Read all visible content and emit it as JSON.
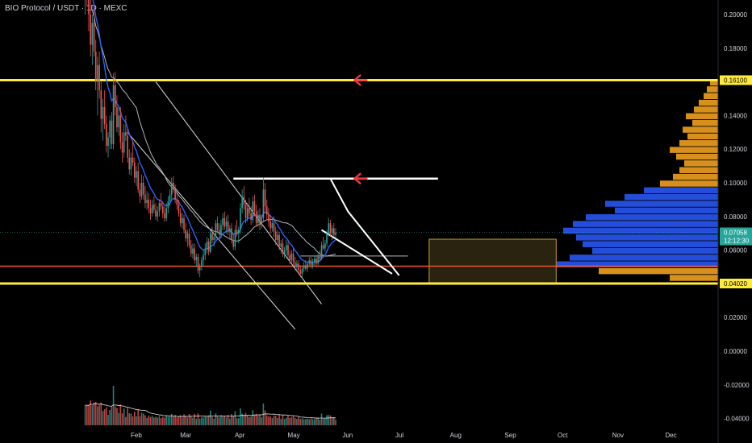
{
  "header": {
    "symbol_title": "BIO Protocol / USDT · 1D · MEXC"
  },
  "colors": {
    "background": "#000000",
    "up": "#26a69a",
    "down": "#ef5350",
    "level_yellow": "#ffeb3b",
    "level_orange": "#ff5722",
    "arrow_red": "#f23645",
    "ema_blue": "#2962ff",
    "sma_gray": "#b2b5be",
    "profile_orange": "#f0a020",
    "profile_blue": "#2a5cff",
    "box_fill": "#3a3216",
    "box_stroke": "#c9a227"
  },
  "chart_data": {
    "type": "candlestick",
    "x_axis": {
      "ticks": [
        "Feb",
        "Mar",
        "Apr",
        "May",
        "Jun",
        "Jul",
        "Aug",
        "Sep",
        "Oct",
        "Nov",
        "Dec"
      ]
    },
    "y_axis": {
      "scale": "linear",
      "range": [
        -0.045,
        0.21
      ],
      "ticks": [
        "0.20000",
        "0.18000",
        "0.16000",
        "0.14000",
        "0.12000",
        "0.10000",
        "0.08000",
        "0.06000",
        "0.04000",
        "0.02000",
        "0.00000",
        "-0.02000",
        "-0.04000"
      ]
    },
    "price_label": {
      "value": "0.07058",
      "countdown": "12:12:30"
    },
    "levels": [
      {
        "name": "resistance-high",
        "value": 0.161,
        "label": "0.16100",
        "color": "#ffeb3b"
      },
      {
        "name": "support-low",
        "value": 0.0402,
        "label": "0.04020",
        "color": "#ffeb3b"
      },
      {
        "name": "orange-line",
        "value": 0.0505,
        "color": "#ff5722"
      },
      {
        "name": "current-price",
        "value": 0.07058,
        "color": "#26a69a"
      }
    ],
    "annotations": {
      "white_top_line": {
        "x_from": "2025-03-28",
        "x_to": "2025-07-22",
        "y": 0.1025
      },
      "white_mid_line": {
        "x_from": "2025-05-05",
        "x_to": "2025-07-05",
        "y": 0.0565
      },
      "triangle": [
        [
          "2025-05-22",
          0.1025
        ],
        [
          "2025-06-01",
          0.083
        ],
        [
          "2025-06-30",
          0.045
        ]
      ],
      "wedge_line": [
        [
          "2025-05-17",
          0.072
        ],
        [
          "2025-06-26",
          0.046
        ]
      ],
      "channel_upper": [
        [
          "2025-02-12",
          0.16
        ],
        [
          "2025-05-17",
          0.028
        ]
      ],
      "channel_lower": [
        [
          "2025-01-27",
          0.13
        ],
        [
          "2025-05-02",
          0.013
        ]
      ],
      "arrows": [
        {
          "x": "2025-06-07",
          "y": 0.161
        },
        {
          "x": "2025-06-07",
          "y": 0.1025
        }
      ],
      "box": {
        "x_from": "2025-07-17",
        "x_to": "2025-09-27",
        "y_from": 0.0405,
        "y_to": 0.0665
      }
    },
    "candles": {
      "start": "2025-01-03",
      "ohlc": [
        [
          0.215,
          0.24,
          0.2,
          0.225
        ],
        [
          0.225,
          0.235,
          0.205,
          0.212
        ],
        [
          0.212,
          0.222,
          0.19,
          0.2
        ],
        [
          0.2,
          0.21,
          0.175,
          0.182
        ],
        [
          0.182,
          0.2,
          0.17,
          0.195
        ],
        [
          0.195,
          0.205,
          0.175,
          0.178
        ],
        [
          0.178,
          0.185,
          0.155,
          0.16
        ],
        [
          0.16,
          0.175,
          0.14,
          0.17
        ],
        [
          0.17,
          0.178,
          0.15,
          0.155
        ],
        [
          0.155,
          0.16,
          0.13,
          0.138
        ],
        [
          0.138,
          0.15,
          0.125,
          0.145
        ],
        [
          0.145,
          0.155,
          0.132,
          0.135
        ],
        [
          0.135,
          0.14,
          0.118,
          0.122
        ],
        [
          0.122,
          0.13,
          0.115,
          0.127
        ],
        [
          0.127,
          0.14,
          0.12,
          0.137
        ],
        [
          0.137,
          0.142,
          0.12,
          0.123
        ],
        [
          0.123,
          0.165,
          0.12,
          0.158
        ],
        [
          0.158,
          0.166,
          0.14,
          0.145
        ],
        [
          0.145,
          0.152,
          0.13,
          0.133
        ],
        [
          0.133,
          0.145,
          0.128,
          0.14
        ],
        [
          0.14,
          0.145,
          0.12,
          0.124
        ],
        [
          0.124,
          0.13,
          0.112,
          0.118
        ],
        [
          0.118,
          0.135,
          0.115,
          0.13
        ],
        [
          0.13,
          0.14,
          0.125,
          0.128
        ],
        [
          0.128,
          0.132,
          0.112,
          0.115
        ],
        [
          0.115,
          0.12,
          0.105,
          0.108
        ],
        [
          0.108,
          0.118,
          0.104,
          0.115
        ],
        [
          0.115,
          0.125,
          0.11,
          0.112
        ],
        [
          0.112,
          0.115,
          0.1,
          0.103
        ],
        [
          0.103,
          0.11,
          0.098,
          0.107
        ],
        [
          0.107,
          0.112,
          0.094,
          0.096
        ],
        [
          0.096,
          0.1,
          0.088,
          0.092
        ],
        [
          0.092,
          0.105,
          0.09,
          0.1
        ],
        [
          0.1,
          0.104,
          0.09,
          0.093
        ],
        [
          0.093,
          0.098,
          0.085,
          0.088
        ],
        [
          0.088,
          0.095,
          0.084,
          0.09
        ],
        [
          0.09,
          0.094,
          0.082,
          0.085
        ],
        [
          0.085,
          0.09,
          0.078,
          0.082
        ],
        [
          0.082,
          0.09,
          0.08,
          0.087
        ],
        [
          0.087,
          0.092,
          0.082,
          0.084
        ],
        [
          0.084,
          0.088,
          0.078,
          0.08
        ],
        [
          0.08,
          0.086,
          0.077,
          0.083
        ],
        [
          0.083,
          0.09,
          0.08,
          0.088
        ],
        [
          0.088,
          0.094,
          0.084,
          0.086
        ],
        [
          0.086,
          0.089,
          0.079,
          0.082
        ],
        [
          0.082,
          0.086,
          0.077,
          0.079
        ],
        [
          0.079,
          0.088,
          0.077,
          0.085
        ],
        [
          0.085,
          0.092,
          0.082,
          0.089
        ],
        [
          0.089,
          0.096,
          0.086,
          0.093
        ],
        [
          0.093,
          0.103,
          0.09,
          0.1
        ],
        [
          0.1,
          0.104,
          0.094,
          0.096
        ],
        [
          0.096,
          0.099,
          0.088,
          0.09
        ],
        [
          0.09,
          0.094,
          0.084,
          0.087
        ],
        [
          0.087,
          0.09,
          0.08,
          0.082
        ],
        [
          0.082,
          0.085,
          0.074,
          0.076
        ],
        [
          0.076,
          0.082,
          0.073,
          0.079
        ],
        [
          0.079,
          0.081,
          0.07,
          0.072
        ],
        [
          0.072,
          0.076,
          0.065,
          0.067
        ],
        [
          0.067,
          0.072,
          0.062,
          0.07
        ],
        [
          0.07,
          0.073,
          0.061,
          0.063
        ],
        [
          0.063,
          0.066,
          0.056,
          0.058
        ],
        [
          0.058,
          0.064,
          0.055,
          0.061
        ],
        [
          0.061,
          0.064,
          0.052,
          0.054
        ],
        [
          0.054,
          0.058,
          0.05,
          0.056
        ],
        [
          0.056,
          0.058,
          0.046,
          0.048
        ],
        [
          0.048,
          0.052,
          0.044,
          0.05
        ],
        [
          0.05,
          0.056,
          0.048,
          0.054
        ],
        [
          0.054,
          0.06,
          0.051,
          0.057
        ],
        [
          0.057,
          0.064,
          0.054,
          0.061
        ],
        [
          0.061,
          0.068,
          0.058,
          0.065
        ],
        [
          0.065,
          0.067,
          0.057,
          0.059
        ],
        [
          0.059,
          0.072,
          0.058,
          0.07
        ],
        [
          0.07,
          0.074,
          0.064,
          0.066
        ],
        [
          0.066,
          0.07,
          0.062,
          0.068
        ],
        [
          0.068,
          0.078,
          0.066,
          0.076
        ],
        [
          0.076,
          0.08,
          0.07,
          0.072
        ],
        [
          0.072,
          0.076,
          0.066,
          0.069
        ],
        [
          0.069,
          0.078,
          0.067,
          0.075
        ],
        [
          0.075,
          0.082,
          0.072,
          0.079
        ],
        [
          0.079,
          0.083,
          0.072,
          0.074
        ],
        [
          0.074,
          0.08,
          0.07,
          0.077
        ],
        [
          0.077,
          0.081,
          0.069,
          0.071
        ],
        [
          0.071,
          0.075,
          0.066,
          0.073
        ],
        [
          0.073,
          0.076,
          0.064,
          0.066
        ],
        [
          0.066,
          0.07,
          0.06,
          0.062
        ],
        [
          0.062,
          0.075,
          0.06,
          0.072
        ],
        [
          0.072,
          0.078,
          0.068,
          0.07
        ],
        [
          0.07,
          0.074,
          0.064,
          0.072
        ],
        [
          0.072,
          0.088,
          0.07,
          0.085
        ],
        [
          0.085,
          0.096,
          0.082,
          0.092
        ],
        [
          0.092,
          0.098,
          0.084,
          0.087
        ],
        [
          0.087,
          0.09,
          0.076,
          0.079
        ],
        [
          0.079,
          0.088,
          0.077,
          0.085
        ],
        [
          0.085,
          0.091,
          0.08,
          0.082
        ],
        [
          0.082,
          0.086,
          0.075,
          0.078
        ],
        [
          0.078,
          0.092,
          0.076,
          0.089
        ],
        [
          0.089,
          0.093,
          0.08,
          0.083
        ],
        [
          0.083,
          0.087,
          0.074,
          0.076
        ],
        [
          0.076,
          0.084,
          0.074,
          0.081
        ],
        [
          0.081,
          0.085,
          0.072,
          0.075
        ],
        [
          0.075,
          0.081,
          0.073,
          0.079
        ],
        [
          0.079,
          0.103,
          0.077,
          0.096
        ],
        [
          0.096,
          0.1,
          0.082,
          0.086
        ],
        [
          0.086,
          0.09,
          0.078,
          0.081
        ],
        [
          0.081,
          0.085,
          0.074,
          0.077
        ],
        [
          0.077,
          0.081,
          0.07,
          0.073
        ],
        [
          0.073,
          0.079,
          0.071,
          0.076
        ],
        [
          0.076,
          0.08,
          0.068,
          0.071
        ],
        [
          0.071,
          0.074,
          0.063,
          0.066
        ],
        [
          0.066,
          0.072,
          0.064,
          0.069
        ],
        [
          0.069,
          0.071,
          0.06,
          0.062
        ],
        [
          0.062,
          0.066,
          0.058,
          0.064
        ],
        [
          0.064,
          0.067,
          0.056,
          0.058
        ],
        [
          0.058,
          0.062,
          0.055,
          0.06
        ],
        [
          0.06,
          0.066,
          0.057,
          0.063
        ],
        [
          0.063,
          0.065,
          0.055,
          0.057
        ],
        [
          0.057,
          0.06,
          0.052,
          0.054
        ],
        [
          0.054,
          0.06,
          0.052,
          0.058
        ],
        [
          0.058,
          0.061,
          0.051,
          0.053
        ],
        [
          0.053,
          0.056,
          0.048,
          0.05
        ],
        [
          0.05,
          0.054,
          0.047,
          0.052
        ],
        [
          0.052,
          0.054,
          0.046,
          0.048
        ],
        [
          0.048,
          0.051,
          0.044,
          0.046
        ],
        [
          0.046,
          0.05,
          0.043,
          0.049
        ],
        [
          0.049,
          0.053,
          0.047,
          0.051
        ],
        [
          0.051,
          0.054,
          0.048,
          0.049
        ],
        [
          0.049,
          0.053,
          0.047,
          0.052
        ],
        [
          0.052,
          0.056,
          0.05,
          0.054
        ],
        [
          0.054,
          0.056,
          0.049,
          0.051
        ],
        [
          0.051,
          0.055,
          0.049,
          0.053
        ],
        [
          0.053,
          0.057,
          0.051,
          0.055
        ],
        [
          0.055,
          0.057,
          0.05,
          0.052
        ],
        [
          0.052,
          0.058,
          0.051,
          0.056
        ],
        [
          0.056,
          0.06,
          0.053,
          0.055
        ],
        [
          0.055,
          0.065,
          0.054,
          0.063
        ],
        [
          0.063,
          0.068,
          0.06,
          0.061
        ],
        [
          0.061,
          0.066,
          0.059,
          0.064
        ],
        [
          0.064,
          0.072,
          0.062,
          0.07
        ],
        [
          0.07,
          0.079,
          0.068,
          0.076
        ],
        [
          0.076,
          0.078,
          0.068,
          0.07
        ],
        [
          0.07,
          0.075,
          0.066,
          0.073
        ],
        [
          0.073,
          0.076,
          0.068,
          0.069
        ],
        [
          0.069,
          0.073,
          0.067,
          0.07058
        ]
      ]
    },
    "volume_profile": {
      "note": "horizontal volume-by-price histogram on right side",
      "bins": [
        [
          0.158,
          0.05
        ],
        [
          0.154,
          0.07
        ],
        [
          0.15,
          0.09
        ],
        [
          0.146,
          0.12
        ],
        [
          0.142,
          0.15
        ],
        [
          0.138,
          0.2
        ],
        [
          0.134,
          0.16
        ],
        [
          0.13,
          0.22
        ],
        [
          0.126,
          0.19
        ],
        [
          0.122,
          0.24
        ],
        [
          0.118,
          0.3
        ],
        [
          0.114,
          0.26
        ],
        [
          0.11,
          0.21
        ],
        [
          0.106,
          0.24
        ],
        [
          0.102,
          0.28
        ],
        [
          0.098,
          0.36
        ],
        [
          0.094,
          0.46
        ],
        [
          0.09,
          0.58
        ],
        [
          0.086,
          0.7
        ],
        [
          0.082,
          0.64
        ],
        [
          0.078,
          0.82
        ],
        [
          0.074,
          0.9
        ],
        [
          0.07,
          0.96
        ],
        [
          0.066,
          0.88
        ],
        [
          0.062,
          0.84
        ],
        [
          0.058,
          0.78
        ],
        [
          0.054,
          0.92
        ],
        [
          0.05,
          1.0
        ],
        [
          0.046,
          0.74
        ],
        [
          0.042,
          0.3
        ]
      ]
    }
  }
}
